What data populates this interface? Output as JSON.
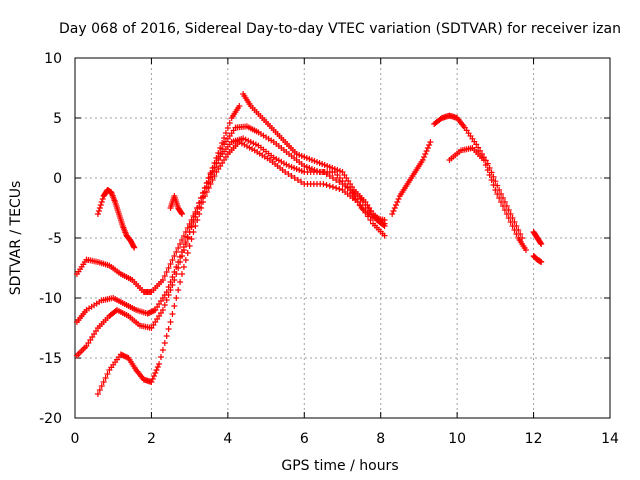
{
  "chart_data": {
    "type": "scatter",
    "title": "Day 068 of 2016, Sidereal Day-to-day VTEC variation (SDTVAR) for receiver izan",
    "xlabel": "GPS time / hours",
    "ylabel": "SDTVAR / TECUs",
    "xlim": [
      0,
      14
    ],
    "ylim": [
      -20,
      10
    ],
    "xticks": [
      "0",
      "2",
      "4",
      "6",
      "8",
      "10",
      "12",
      "14"
    ],
    "yticks": [
      "-20",
      "-15",
      "-10",
      "-5",
      "0",
      "5",
      "10"
    ],
    "grid": true,
    "marker": "+",
    "color": "#ff0000",
    "series": [
      {
        "name": "s1",
        "x": [
          0.05,
          0.3,
          0.6,
          0.9,
          1.2,
          1.5,
          1.8,
          2.0,
          2.3,
          2.6,
          2.9,
          3.2,
          3.5,
          3.8,
          4.1,
          4.3
        ],
        "y": [
          -8,
          -6.8,
          -7,
          -7.3,
          -8,
          -8.5,
          -9.5,
          -9.5,
          -8.5,
          -6.5,
          -4.5,
          -2.5,
          0,
          2.5,
          5,
          6
        ]
      },
      {
        "name": "s2",
        "x": [
          0.05,
          0.3,
          0.7,
          1.0,
          1.3,
          1.6,
          1.9,
          2.1,
          2.4,
          2.7,
          3.0,
          3.3,
          3.6,
          3.9,
          4.2,
          4.5,
          4.8,
          5.2,
          5.6,
          6.0,
          6.4,
          6.8,
          7.2,
          7.5,
          7.8,
          8.1
        ],
        "y": [
          -12,
          -11,
          -10.2,
          -10,
          -10.5,
          -11,
          -11.3,
          -11,
          -9.5,
          -7,
          -4.5,
          -2,
          0.5,
          2.8,
          4.2,
          4.3,
          3.8,
          3,
          2,
          1,
          0.5,
          0.5,
          -1,
          -2.5,
          -3.3,
          -3.5
        ]
      },
      {
        "name": "s3",
        "x": [
          0.05,
          0.3,
          0.6,
          0.9,
          1.1,
          1.4,
          1.7,
          2.0,
          2.3,
          2.6,
          2.9,
          3.2,
          3.5,
          3.8,
          4.1,
          4.4,
          4.8,
          5.2,
          5.6,
          6.0,
          6.5,
          7.0,
          7.4,
          7.8,
          8.1
        ],
        "y": [
          -14.8,
          -14,
          -12.5,
          -11.5,
          -11,
          -11.5,
          -12.3,
          -12.5,
          -11,
          -8.5,
          -5.5,
          -2.5,
          0,
          1.8,
          3,
          3.3,
          2.7,
          1.7,
          1,
          0.5,
          0.5,
          -0.5,
          -1.5,
          -3,
          -3.8
        ]
      },
      {
        "name": "s4",
        "x": [
          0.6,
          0.9,
          1.2,
          1.4,
          1.6,
          1.8,
          2.0,
          2.2,
          2.5,
          2.8,
          3.1,
          3.4,
          3.7,
          4.0,
          4.3,
          4.7,
          5.1,
          5.5,
          6.0,
          6.5,
          7.0,
          7.4,
          7.8,
          8.1
        ],
        "y": [
          -18,
          -16,
          -14.7,
          -15,
          -16,
          -16.8,
          -17,
          -15.5,
          -12,
          -8,
          -4.5,
          -1.5,
          0.5,
          2,
          3,
          2.3,
          1.5,
          0.5,
          -0.5,
          -0.5,
          -1,
          -2,
          -3.8,
          -4.8
        ]
      },
      {
        "name": "s5",
        "x": [
          0.6,
          0.75,
          0.85,
          0.95,
          1.05,
          1.15,
          1.25,
          1.35,
          1.45,
          1.55
        ],
        "y": [
          -3,
          -1.5,
          -1,
          -1.2,
          -2,
          -3,
          -4,
          -4.8,
          -5.2,
          -5.8
        ]
      },
      {
        "name": "s6",
        "x": [
          2.5,
          2.6,
          2.7,
          2.8
        ],
        "y": [
          -2.5,
          -1.5,
          -2.5,
          -3
        ]
      },
      {
        "name": "s7",
        "x": [
          4.4,
          4.6,
          4.9,
          5.2,
          5.5,
          5.8,
          6.2,
          6.6,
          7.0,
          7.3,
          7.6,
          7.9,
          8.1
        ],
        "y": [
          7,
          6,
          5,
          4,
          3,
          2,
          1.5,
          1,
          0.5,
          -1,
          -2,
          -3.5,
          -4
        ]
      },
      {
        "name": "s8",
        "x": [
          8.3,
          8.5,
          8.7,
          8.9,
          9.1,
          9.3
        ],
        "y": [
          -3,
          -1.5,
          -0.5,
          0.5,
          1.5,
          3
        ]
      },
      {
        "name": "s9",
        "x": [
          9.4,
          9.6,
          9.8,
          10.0,
          10.2,
          10.5,
          10.8,
          11.1,
          11.4,
          11.7
        ],
        "y": [
          4.5,
          5,
          5.2,
          5,
          4.2,
          2.8,
          1.2,
          -1,
          -3,
          -5
        ]
      },
      {
        "name": "s10",
        "x": [
          9.8,
          10.1,
          10.4,
          10.7,
          11.0,
          11.3,
          11.6,
          11.8
        ],
        "y": [
          1.5,
          2.3,
          2.5,
          1.5,
          -1,
          -3,
          -5,
          -6
        ]
      },
      {
        "name": "s11",
        "x": [
          12.0,
          12.1,
          12.2
        ],
        "y": [
          -4.5,
          -5,
          -5.5
        ]
      },
      {
        "name": "s12",
        "x": [
          12.0,
          12.1,
          12.2
        ],
        "y": [
          -6.5,
          -6.8,
          -7
        ]
      }
    ]
  }
}
